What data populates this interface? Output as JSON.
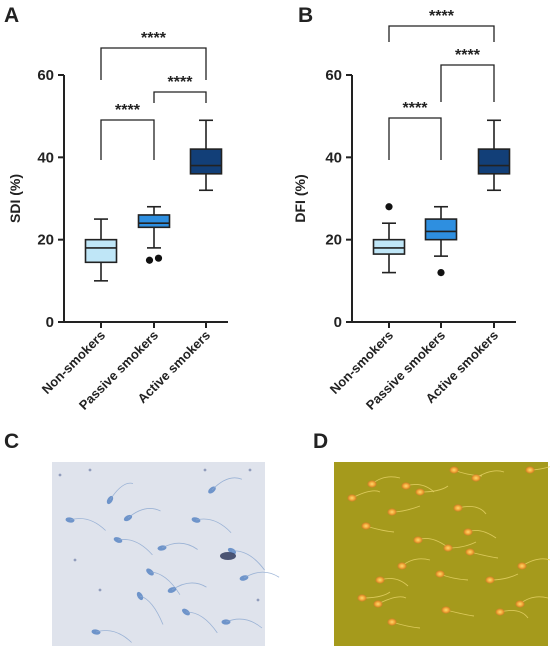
{
  "panels": {
    "A": "A",
    "B": "B",
    "C": "C",
    "D": "D"
  },
  "significance_label": "****",
  "colors": {
    "non_smokers": "#bfe6f7",
    "passive_smokers": "#2e8fe0",
    "active_smokers": "#123f78",
    "stain_background": "#dfe3ec",
    "stain_cells": "#5a86c4",
    "fluor_background": "#a59a1c",
    "fluor_cells": "#f1a534"
  },
  "chart_data": [
    {
      "type": "box",
      "panel": "A",
      "title": "",
      "xlabel": "",
      "ylabel": "SDI (%)",
      "ylim": [
        0,
        60
      ],
      "yticks": [
        0,
        20,
        40,
        60
      ],
      "categories": [
        "Non-smokers",
        "Passive smokers",
        "Active smokers"
      ],
      "boxes": [
        {
          "min": 10,
          "q1": 14.5,
          "median": 18,
          "q3": 20,
          "max": 25,
          "outliers": []
        },
        {
          "min": 18,
          "q1": 23,
          "median": 24,
          "q3": 26,
          "max": 28,
          "outliers": [
            15,
            15.5
          ]
        },
        {
          "min": 32,
          "q1": 36,
          "median": 38,
          "q3": 42,
          "max": 49,
          "outliers": []
        }
      ],
      "comparisons": [
        {
          "from": 0,
          "to": 1,
          "label": "****"
        },
        {
          "from": 1,
          "to": 2,
          "label": "****"
        },
        {
          "from": 0,
          "to": 2,
          "label": "****"
        }
      ]
    },
    {
      "type": "box",
      "panel": "B",
      "title": "",
      "xlabel": "",
      "ylabel": "DFI (%)",
      "ylim": [
        0,
        60
      ],
      "yticks": [
        0,
        20,
        40,
        60
      ],
      "categories": [
        "Non-smokers",
        "Passive smokers",
        "Active smokers"
      ],
      "boxes": [
        {
          "min": 12,
          "q1": 16.5,
          "median": 18,
          "q3": 20,
          "max": 24,
          "outliers": [
            28
          ]
        },
        {
          "min": 16,
          "q1": 20,
          "median": 22,
          "q3": 25,
          "max": 28,
          "outliers": [
            12
          ]
        },
        {
          "min": 32,
          "q1": 36,
          "median": 38,
          "q3": 42,
          "max": 49,
          "outliers": []
        }
      ],
      "comparisons": [
        {
          "from": 0,
          "to": 1,
          "label": "****"
        },
        {
          "from": 1,
          "to": 2,
          "label": "****"
        },
        {
          "from": 0,
          "to": 2,
          "label": "****"
        }
      ]
    }
  ]
}
